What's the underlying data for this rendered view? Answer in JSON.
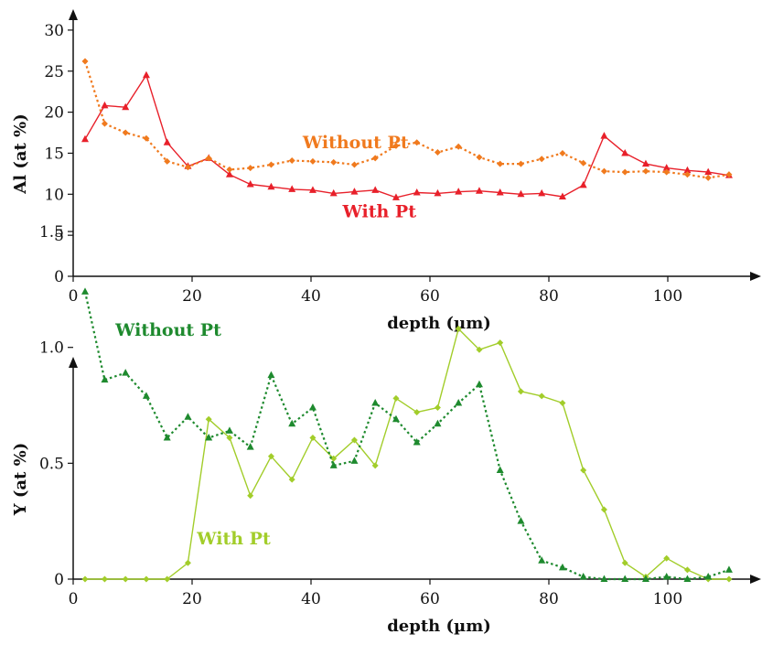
{
  "chart_data": [
    {
      "type": "line",
      "xlabel": "depth (µm)",
      "ylabel": "Al (at %)",
      "xlim": [
        0,
        115
      ],
      "ylim": [
        0,
        32
      ],
      "xticks": [
        0,
        20,
        40,
        60,
        80,
        100
      ],
      "yticks": [
        0,
        5,
        10,
        15,
        20,
        25,
        30
      ],
      "grid": false,
      "series": [
        {
          "name": "With Pt",
          "color": "#e8202a",
          "style": "solid",
          "marker": "triangle",
          "x": [
            2,
            5.3,
            8.8,
            12.3,
            15.8,
            19.3,
            22.8,
            26.3,
            29.8,
            33.3,
            36.8,
            40.3,
            43.8,
            47.3,
            50.8,
            54.3,
            57.8,
            61.3,
            64.8,
            68.3,
            71.8,
            75.3,
            78.8,
            82.3,
            85.8,
            89.3,
            92.8,
            96.3,
            99.8,
            103.3,
            106.8,
            110.3
          ],
          "y": [
            16.7,
            20.8,
            20.6,
            24.5,
            16.3,
            13.4,
            14.4,
            12.4,
            11.2,
            10.9,
            10.6,
            10.5,
            10.1,
            10.3,
            10.5,
            9.6,
            10.2,
            10.1,
            10.3,
            10.4,
            10.2,
            10.0,
            10.1,
            9.7,
            11.1,
            17.1,
            15.0,
            13.7,
            13.2,
            12.9,
            12.7,
            12.3
          ]
        },
        {
          "name": "Without Pt",
          "color": "#f07a1e",
          "style": "dotted",
          "marker": "diamond",
          "x": [
            2,
            5.3,
            8.8,
            12.3,
            15.8,
            19.3,
            22.8,
            26.3,
            29.8,
            33.3,
            36.8,
            40.3,
            43.8,
            47.3,
            50.8,
            54.3,
            57.8,
            61.3,
            64.8,
            68.3,
            71.8,
            75.3,
            78.8,
            82.3,
            85.8,
            89.3,
            92.8,
            96.3,
            99.8,
            103.3,
            106.8,
            110.3
          ],
          "y": [
            26.2,
            18.6,
            17.5,
            16.8,
            14.0,
            13.3,
            14.4,
            13.0,
            13.2,
            13.6,
            14.1,
            14.0,
            13.9,
            13.6,
            14.4,
            15.9,
            16.3,
            15.1,
            15.8,
            14.5,
            13.7,
            13.7,
            14.3,
            15.0,
            13.8,
            12.8,
            12.7,
            12.8,
            12.7,
            12.4,
            12.0,
            12.4
          ]
        }
      ],
      "annotations": [
        {
          "text": "Without Pt",
          "color": "#f07a1e",
          "x": 47.5,
          "y": 15.6
        },
        {
          "text": "With Pt",
          "color": "#e8202a",
          "x": 51.5,
          "y": 7.2
        }
      ]
    },
    {
      "type": "line",
      "xlabel": "depth (µm)",
      "ylabel": "Y (at %)",
      "xlim": [
        0,
        115
      ],
      "ylim": [
        0,
        1.75
      ],
      "xticks": [
        0,
        20,
        40,
        60,
        80,
        100
      ],
      "yticks": [
        0,
        0.5,
        1.0,
        1.5
      ],
      "ytick_labels": [
        "0",
        "0.5",
        "1.0",
        "1.5"
      ],
      "grid": false,
      "series": [
        {
          "name": "With Pt",
          "color": "#a2cd2a",
          "style": "solid",
          "marker": "diamond",
          "x": [
            2,
            5.3,
            8.8,
            12.3,
            15.8,
            19.3,
            22.8,
            26.3,
            29.8,
            33.3,
            36.8,
            40.3,
            43.8,
            47.3,
            50.8,
            54.3,
            57.8,
            61.3,
            64.8,
            68.3,
            71.8,
            75.3,
            78.8,
            82.3,
            85.8,
            89.3,
            92.8,
            96.3,
            99.8,
            103.3,
            106.8,
            110.3
          ],
          "y": [
            0.0,
            0.0,
            0.0,
            0.0,
            0.0,
            0.07,
            0.69,
            0.61,
            0.36,
            0.53,
            0.43,
            0.61,
            0.52,
            0.6,
            0.49,
            0.78,
            0.72,
            0.74,
            1.08,
            0.99,
            1.02,
            0.81,
            0.79,
            0.76,
            0.47,
            0.3,
            0.07,
            0.01,
            0.09,
            0.04,
            0.0,
            0.0
          ]
        },
        {
          "name": "Without Pt",
          "color": "#1e8a2e",
          "style": "dotted",
          "marker": "triangle",
          "x": [
            2,
            5.3,
            8.8,
            12.3,
            15.8,
            19.3,
            22.8,
            26.3,
            29.8,
            33.3,
            36.8,
            40.3,
            43.8,
            47.3,
            50.8,
            54.3,
            57.8,
            61.3,
            64.8,
            68.3,
            71.8,
            75.3,
            78.8,
            82.3,
            85.8,
            89.3,
            92.8,
            96.3,
            99.8,
            103.3,
            106.8,
            110.3
          ],
          "y": [
            1.24,
            0.86,
            0.89,
            0.79,
            0.61,
            0.7,
            0.61,
            0.64,
            0.57,
            0.88,
            0.67,
            0.74,
            0.49,
            0.51,
            0.76,
            0.69,
            0.59,
            0.67,
            0.76,
            0.84,
            0.47,
            0.25,
            0.08,
            0.05,
            0.01,
            0.0,
            0.0,
            0.0,
            0.01,
            0.0,
            0.01,
            0.04
          ]
        }
      ],
      "annotations": [
        {
          "text": "Without Pt",
          "color": "#1e8a2e",
          "x": 16,
          "y": 1.05
        },
        {
          "text": "With Pt",
          "color": "#a2cd2a",
          "x": 27,
          "y": 0.15
        }
      ]
    }
  ]
}
